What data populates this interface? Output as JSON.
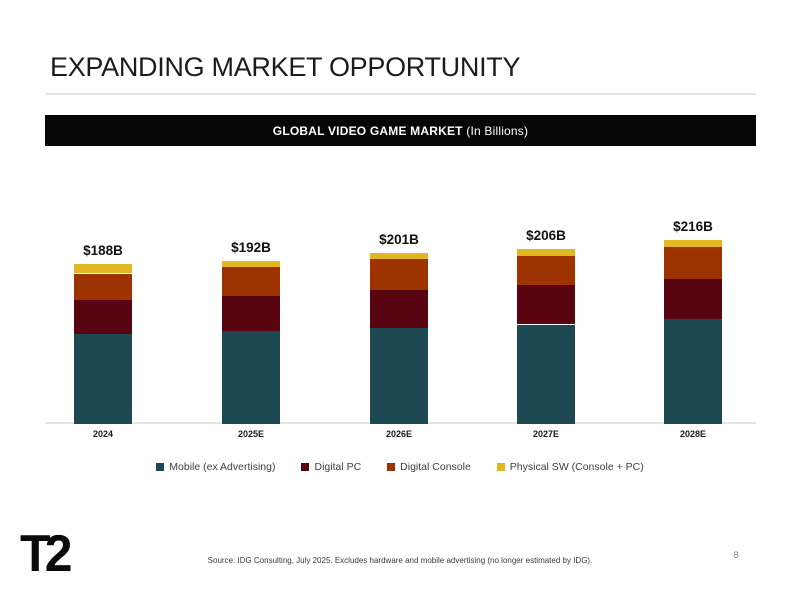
{
  "slide": {
    "title": "EXPANDING MARKET OPPORTUNITY",
    "banner_title": "GLOBAL VIDEO GAME MARKET",
    "banner_subtitle": " (In Billions)",
    "source_note": "Source: IDG Consulting, July 2025. Excludes hardware and mobile advertising (no longer estimated by IDG).",
    "page_number": "8",
    "logo_text": "T2"
  },
  "chart_data": {
    "type": "bar",
    "stacked": true,
    "title": "GLOBAL VIDEO GAME MARKET (In Billions)",
    "xlabel": "",
    "ylabel": "",
    "grid": false,
    "legend_position": "bottom",
    "categories": [
      "2024",
      "2025E",
      "2026E",
      "2027E",
      "2028E"
    ],
    "totals": [
      188,
      192,
      201,
      206,
      216
    ],
    "total_labels": [
      "$188B",
      "$192B",
      "$201B",
      "$206B",
      "$216B"
    ],
    "series": [
      {
        "name": "Mobile (ex Advertising)",
        "color": "#1E4952",
        "values": [
          106,
          109,
          113,
          117,
          123
        ]
      },
      {
        "name": "Digital PC",
        "color": "#580511",
        "values": [
          40,
          42,
          45,
          47,
          48
        ]
      },
      {
        "name": "Digital Console",
        "color": "#9D3400",
        "values": [
          31,
          34,
          36,
          34,
          37
        ]
      },
      {
        "name": "Physical SW (Console + PC)",
        "color": "#E3B722",
        "values": [
          11,
          7,
          7,
          8,
          8
        ]
      }
    ]
  }
}
